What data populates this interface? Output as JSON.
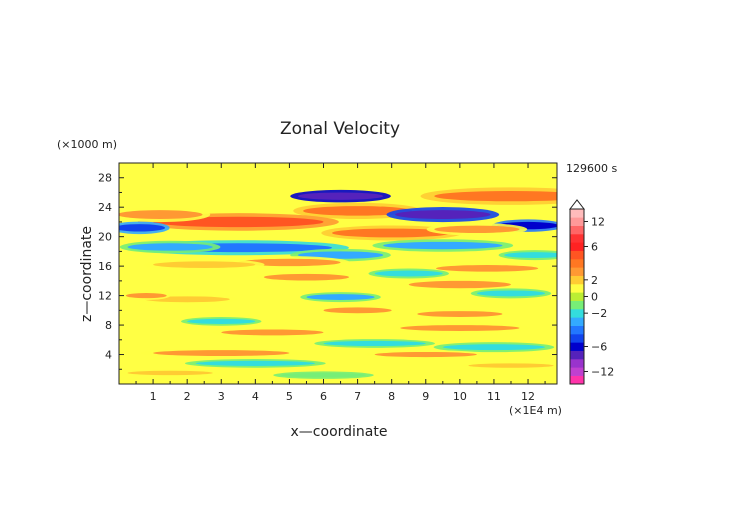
{
  "chart_data": {
    "type": "heatmap",
    "title": "Zonal Velocity",
    "xlabel": "x—coordinate",
    "ylabel": "z—coordinate",
    "x_unit": "(×1E4 m)",
    "y_unit": "(×1000 m)",
    "time_label": "129600 s",
    "xlim": [
      0,
      12.85
    ],
    "ylim": [
      0,
      30
    ],
    "x_ticks": [
      "1",
      "2",
      "3",
      "4",
      "5",
      "6",
      "7",
      "8",
      "9",
      "10",
      "11",
      "12"
    ],
    "y_ticks": [
      "4",
      "8",
      "12",
      "16",
      "20",
      "24",
      "28"
    ],
    "colorbar": {
      "tick_labels": [
        "12",
        "6",
        "2",
        "0",
        "−2",
        "−6",
        "−12"
      ],
      "tick_values": [
        12,
        6,
        2,
        0,
        -2,
        -6,
        -12
      ],
      "levels": [
        -14,
        -12,
        -10,
        -8,
        -6,
        -5,
        -4,
        -3,
        -2,
        -1,
        0,
        1,
        2,
        3,
        4,
        5,
        6,
        8,
        10,
        12,
        14
      ],
      "colors": [
        "#ff33aa",
        "#c040d0",
        "#9933cc",
        "#5522bb",
        "#0000cc",
        "#1144ee",
        "#2277ff",
        "#33aaff",
        "#33dddd",
        "#77ee77",
        "#bbee33",
        "#ffff44",
        "#ffcc33",
        "#ff9933",
        "#ff7722",
        "#ff5522",
        "#ff2222",
        "#ff3333",
        "#ff6666",
        "#ff9999",
        "#ffbbbb"
      ]
    },
    "features": [
      {
        "x": 7.0,
        "z": 23.5,
        "width": 3.2,
        "height": 1.3,
        "value": 4
      },
      {
        "x": 11.5,
        "z": 25.5,
        "width": 4.5,
        "height": 1.4,
        "value": 4
      },
      {
        "x": 3.5,
        "z": 22.0,
        "width": 5.0,
        "height": 1.4,
        "value": 5
      },
      {
        "x": 1.2,
        "z": 23.0,
        "width": 2.5,
        "height": 1.2,
        "value": 3
      },
      {
        "x": 6.5,
        "z": 25.5,
        "width": 2.5,
        "height": 1.0,
        "value": -8
      },
      {
        "x": 9.5,
        "z": 23.0,
        "width": 2.8,
        "height": 1.2,
        "value": -7
      },
      {
        "x": 12.0,
        "z": 21.5,
        "width": 1.8,
        "height": 1.0,
        "value": -6
      },
      {
        "x": 0.6,
        "z": 21.2,
        "width": 1.5,
        "height": 1.0,
        "value": -5
      },
      {
        "x": 3.5,
        "z": 18.5,
        "width": 5.5,
        "height": 1.2,
        "value": -4
      },
      {
        "x": 1.5,
        "z": 18.6,
        "width": 2.5,
        "height": 1.0,
        "value": -3
      },
      {
        "x": 8.0,
        "z": 20.5,
        "width": 3.5,
        "height": 1.2,
        "value": 4
      },
      {
        "x": 10.5,
        "z": 21.0,
        "width": 2.5,
        "height": 1.0,
        "value": 3
      },
      {
        "x": 6.5,
        "z": 17.5,
        "width": 2.5,
        "height": 1.0,
        "value": -3
      },
      {
        "x": 9.5,
        "z": 18.8,
        "width": 3.5,
        "height": 1.0,
        "value": -3
      },
      {
        "x": 5.0,
        "z": 16.5,
        "width": 3.0,
        "height": 1.0,
        "value": 3
      },
      {
        "x": 2.5,
        "z": 16.2,
        "width": 3.0,
        "height": 0.9,
        "value": 2
      },
      {
        "x": 10.8,
        "z": 15.7,
        "width": 3.0,
        "height": 0.9,
        "value": 3
      },
      {
        "x": 12.2,
        "z": 17.5,
        "width": 1.8,
        "height": 0.8,
        "value": -2
      },
      {
        "x": 8.5,
        "z": 15.0,
        "width": 2.0,
        "height": 0.8,
        "value": -2
      },
      {
        "x": 5.5,
        "z": 14.5,
        "width": 2.5,
        "height": 0.9,
        "value": 3
      },
      {
        "x": 10.0,
        "z": 13.5,
        "width": 3.0,
        "height": 1.0,
        "value": 3
      },
      {
        "x": 6.5,
        "z": 11.8,
        "width": 2.0,
        "height": 0.8,
        "value": -3
      },
      {
        "x": 11.5,
        "z": 12.3,
        "width": 2.0,
        "height": 0.8,
        "value": -2
      },
      {
        "x": 7.0,
        "z": 10.0,
        "width": 2.0,
        "height": 0.8,
        "value": 3
      },
      {
        "x": 10.0,
        "z": 9.5,
        "width": 2.5,
        "height": 0.8,
        "value": 3
      },
      {
        "x": 2.0,
        "z": 11.5,
        "width": 2.5,
        "height": 0.8,
        "value": 2
      },
      {
        "x": 0.8,
        "z": 12.0,
        "width": 1.2,
        "height": 0.7,
        "value": 3
      },
      {
        "x": 3.0,
        "z": 8.5,
        "width": 2.0,
        "height": 0.7,
        "value": -2
      },
      {
        "x": 4.5,
        "z": 7.0,
        "width": 3.0,
        "height": 0.8,
        "value": 3
      },
      {
        "x": 10.0,
        "z": 7.6,
        "width": 3.5,
        "height": 0.8,
        "value": 3
      },
      {
        "x": 7.5,
        "z": 5.5,
        "width": 3.0,
        "height": 0.7,
        "value": -2
      },
      {
        "x": 11.0,
        "z": 5.0,
        "width": 3.0,
        "height": 0.8,
        "value": -2
      },
      {
        "x": 3.0,
        "z": 4.2,
        "width": 4.0,
        "height": 0.8,
        "value": 3
      },
      {
        "x": 9.0,
        "z": 4.0,
        "width": 3.0,
        "height": 0.7,
        "value": 3
      },
      {
        "x": 4.0,
        "z": 2.8,
        "width": 3.5,
        "height": 0.7,
        "value": -2
      },
      {
        "x": 1.5,
        "z": 1.5,
        "width": 2.5,
        "height": 0.6,
        "value": 2
      },
      {
        "x": 11.5,
        "z": 2.5,
        "width": 2.5,
        "height": 0.6,
        "value": 2
      },
      {
        "x": 6.0,
        "z": 1.2,
        "width": 2.5,
        "height": 0.6,
        "value": -1
      }
    ]
  }
}
